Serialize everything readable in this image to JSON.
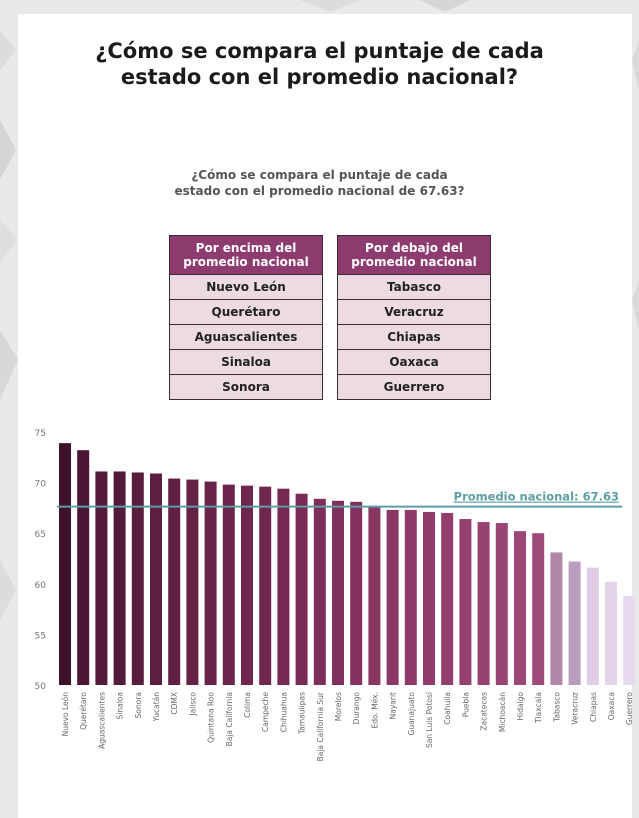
{
  "header": {
    "title_line1": "¿Cómo se compara el puntaje de cada",
    "title_line2": "estado con el promedio nacional?"
  },
  "subheader": {
    "line1": "¿Cómo se compara el puntaje de cada",
    "line2": "estado con el promedio nacional de 67.63?"
  },
  "above_table": {
    "header_line1": "Por encima del",
    "header_line2": "promedio nacional",
    "rows": [
      "Nuevo León",
      "Querétaro",
      "Aguascalientes",
      "Sinaloa",
      "Sonora"
    ]
  },
  "below_table": {
    "header_line1": "Por debajo del",
    "header_line2": "promedio nacional",
    "rows": [
      "Tabasco",
      "Veracruz",
      "Chiapas",
      "Oaxaca",
      "Guerrero"
    ]
  },
  "colors": {
    "header_purple": "#8e3b70",
    "cell_pink": "#eddbe3",
    "average_line": "#5b9ea3"
  },
  "chart_data": {
    "type": "bar",
    "title": "",
    "xlabel": "",
    "ylabel": "",
    "ylim": [
      50,
      75
    ],
    "yticks": [
      50,
      55,
      60,
      65,
      70,
      75
    ],
    "grid": false,
    "average": {
      "value": 67.63,
      "label": "Promedio nacional: 67.63"
    },
    "categories": [
      "Nuevo León",
      "Querétaro",
      "Aguascalientes",
      "Sinaloa",
      "Sonora",
      "Yucatán",
      "CDMX",
      "Jalisco",
      "Quintana Roo",
      "Baja California",
      "Colima",
      "Campeche",
      "Chihuahua",
      "Tamaulipas",
      "Baja California Sur",
      "Morelos",
      "Durango",
      "Edo. Méx.",
      "Nayarit",
      "Guanajuato",
      "San Luis Potosí",
      "Coahuila",
      "Puebla",
      "Zacatecas",
      "Michoacán",
      "Hidalgo",
      "Tlaxcala",
      "Tabasco",
      "Veracruz",
      "Chiapas",
      "Oaxaca",
      "Guerrero"
    ],
    "values": [
      73.9,
      73.2,
      71.1,
      71.1,
      71.0,
      70.9,
      70.4,
      70.3,
      70.1,
      69.8,
      69.7,
      69.6,
      69.4,
      68.9,
      68.4,
      68.2,
      68.1,
      67.6,
      67.3,
      67.3,
      67.1,
      67.0,
      66.4,
      66.1,
      66.0,
      65.2,
      65.0,
      63.1,
      62.2,
      61.6,
      60.2,
      58.8
    ],
    "colors": [
      "#3e1229",
      "#4a1633",
      "#541a3a",
      "#541a3a",
      "#591c3d",
      "#5e1e41",
      "#621f44",
      "#652146",
      "#692349",
      "#6c244c",
      "#6f264e",
      "#722751",
      "#752953",
      "#792b56",
      "#7e2e5a",
      "#812f5c",
      "#84315f",
      "#8a3663",
      "#8c3866",
      "#8e3a68",
      "#903b6a",
      "#923d6c",
      "#95406f",
      "#974271",
      "#994473",
      "#9c4776",
      "#9e4978",
      "#b186a6",
      "#bb9cc0",
      "#e0cde6",
      "#e3d4ea",
      "#e6dbee"
    ]
  }
}
